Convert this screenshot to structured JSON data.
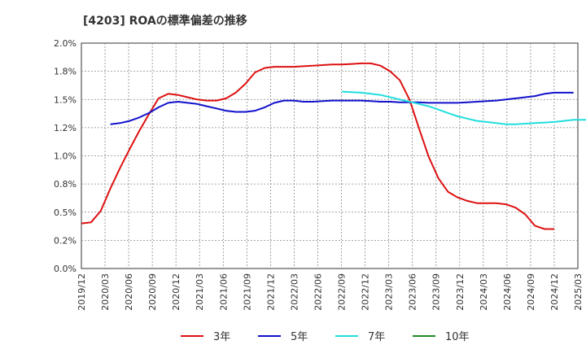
{
  "chart_data": {
    "type": "line",
    "title": "[4203]  ROAの標準偏差の推移",
    "xlabel": "",
    "ylabel": "",
    "ylim": [
      0,
      2.0
    ],
    "y_ticks": [
      0,
      0.25,
      0.5,
      0.75,
      1.0,
      1.25,
      1.5,
      1.75,
      2.0
    ],
    "y_tick_labels": [
      "0.0%",
      "0.2%",
      "0.5%",
      "0.8%",
      "1.0%",
      "1.2%",
      "1.5%",
      "1.8%",
      "2.0%"
    ],
    "x_tick_labels": [
      "2019/12",
      "2020/03",
      "2020/06",
      "2020/09",
      "2020/12",
      "2021/03",
      "2021/06",
      "2021/09",
      "2021/12",
      "2022/03",
      "2022/06",
      "2022/09",
      "2022/12",
      "2023/03",
      "2023/06",
      "2023/09",
      "2023/12",
      "2024/03",
      "2024/06",
      "2024/09",
      "2024/12",
      "2025/03"
    ],
    "grid": true,
    "legend_position": "bottom",
    "series": [
      {
        "name": "3年",
        "color": "#dd1111",
        "start_index": 0,
        "values": [
          0.4,
          0.41,
          0.51,
          0.71,
          0.89,
          1.06,
          1.22,
          1.37,
          1.51,
          1.55,
          1.54,
          1.52,
          1.5,
          1.49,
          1.49,
          1.51,
          1.56,
          1.64,
          1.74,
          1.78,
          1.79,
          1.79,
          1.79,
          1.795,
          1.8,
          1.805,
          1.81,
          1.81,
          1.815,
          1.82,
          1.82,
          1.8,
          1.75,
          1.67,
          1.5,
          1.24,
          0.99,
          0.8,
          0.68,
          0.63,
          0.6,
          0.58,
          0.58,
          0.58,
          0.57,
          0.54,
          0.48,
          0.38,
          0.35,
          0.35
        ]
      },
      {
        "name": "5年",
        "color": "#1111cc",
        "start_index": 3,
        "values": [
          1.28,
          1.29,
          1.31,
          1.34,
          1.38,
          1.43,
          1.47,
          1.48,
          1.47,
          1.46,
          1.44,
          1.42,
          1.4,
          1.39,
          1.39,
          1.4,
          1.43,
          1.47,
          1.49,
          1.49,
          1.48,
          1.48,
          1.485,
          1.49,
          1.49,
          1.49,
          1.49,
          1.485,
          1.48,
          1.48,
          1.475,
          1.475,
          1.475,
          1.47,
          1.47,
          1.47,
          1.47,
          1.475,
          1.48,
          1.485,
          1.49,
          1.5,
          1.51,
          1.52,
          1.53,
          1.55,
          1.56,
          1.56,
          1.56
        ]
      },
      {
        "name": "7年",
        "color": "#22dddd",
        "start_index": 27,
        "values": [
          1.57,
          1.565,
          1.56,
          1.55,
          1.54,
          1.52,
          1.5,
          1.48,
          1.46,
          1.44,
          1.41,
          1.38,
          1.35,
          1.33,
          1.31,
          1.3,
          1.29,
          1.28,
          1.28,
          1.285,
          1.29,
          1.295,
          1.3,
          1.31,
          1.32,
          1.32,
          1.32,
          1.32
        ]
      },
      {
        "name": "10年",
        "color": "#228822",
        "start_index": 0,
        "values": []
      }
    ]
  }
}
